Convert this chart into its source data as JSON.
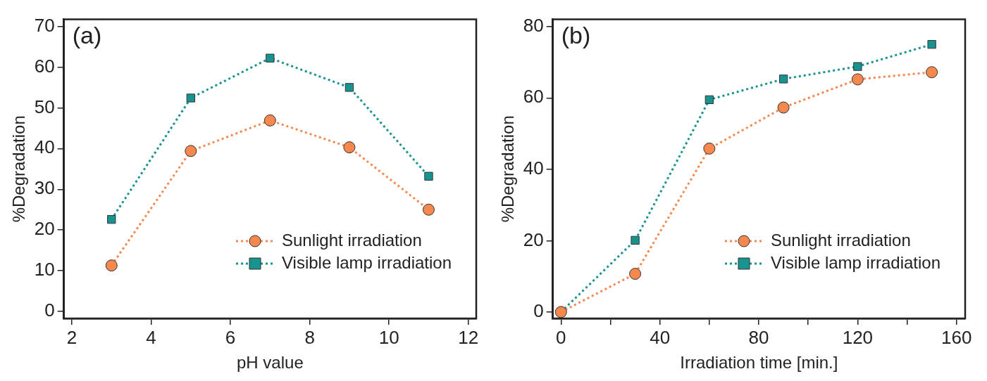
{
  "chart_data": [
    {
      "type": "line",
      "annotations": [
        "(a)"
      ],
      "xlabel": "pH value",
      "ylabel": "%Degradation",
      "xlim": [
        1.8,
        12.2
      ],
      "xticks": [
        2,
        4,
        6,
        8,
        10,
        12
      ],
      "ylim": [
        -1.7,
        71.7
      ],
      "yticks": [
        0,
        10,
        20,
        30,
        40,
        50,
        60,
        70
      ],
      "grid": false,
      "legend": "bottom right",
      "line_style": "dotted",
      "series": [
        {
          "name": "Sunlight irradiation",
          "color": "#f4884f",
          "marker": "circle",
          "x": [
            3,
            5,
            7,
            9,
            11
          ],
          "values": [
            11.3,
            39.4,
            46.9,
            40.3,
            25.0
          ]
        },
        {
          "name": "Visible lamp irradiation",
          "color": "#17948f",
          "marker": "square",
          "x": [
            3,
            5,
            7,
            9,
            11
          ],
          "values": [
            22.6,
            52.4,
            62.2,
            55.0,
            33.2
          ]
        }
      ]
    },
    {
      "type": "line",
      "annotations": [
        "(b)"
      ],
      "xlabel": "Irradiation time [min.]",
      "ylabel": "%Degradation",
      "xlim": [
        -3.3,
        163.5
      ],
      "xticks": [
        0,
        {
          "value": 20,
          "label": null
        },
        40,
        {
          "value": 60,
          "label": null
        },
        80,
        {
          "value": 100,
          "label": null
        },
        120,
        {
          "value": 140,
          "label": null
        },
        160
      ],
      "ylim": [
        -1.8,
        82
      ],
      "yticks": [
        0,
        20,
        40,
        60,
        80
      ],
      "grid": false,
      "legend": "bottom right",
      "line_style": "dotted",
      "series": [
        {
          "name": "Sunlight irradiation",
          "color": "#f4884f",
          "marker": "circle",
          "x": [
            0,
            30,
            60,
            90,
            120,
            150
          ],
          "values": [
            0,
            10.7,
            45.8,
            57.3,
            65.2,
            67.2
          ]
        },
        {
          "name": "Visible lamp irradiation",
          "color": "#17948f",
          "marker": "square",
          "x": [
            0,
            30,
            60,
            90,
            120,
            150
          ],
          "values": [
            0,
            20.1,
            59.5,
            65.3,
            68.8,
            75.0
          ]
        }
      ]
    }
  ]
}
